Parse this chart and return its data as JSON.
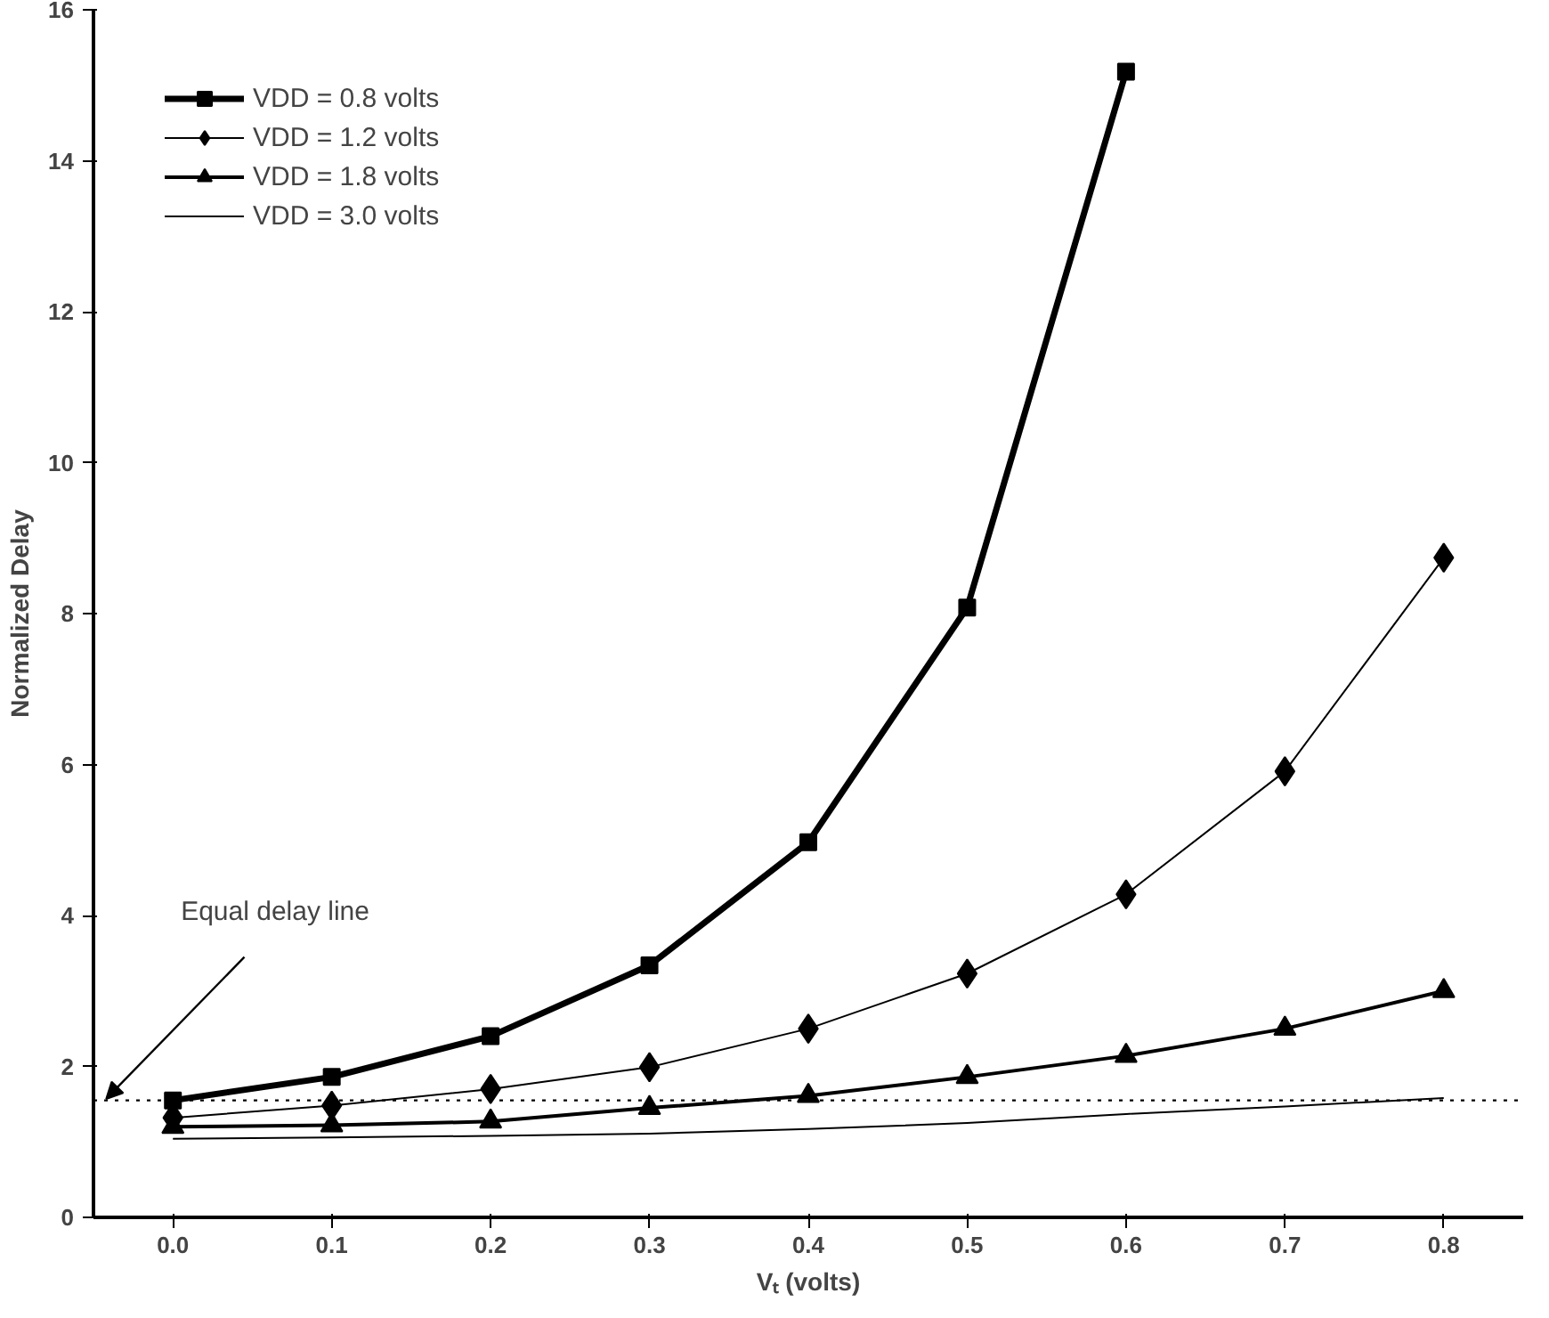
{
  "chart_data": {
    "type": "line",
    "xlabel": "Vₜ (volts)",
    "ylabel": "Normalized Delay",
    "categories": [
      "0.0",
      "0.1",
      "0.2",
      "0.3",
      "0.4",
      "0.5",
      "0.6",
      "0.7",
      "0.8"
    ],
    "series": [
      {
        "name": "VDD = 0.8 volts",
        "color": "#000000",
        "marker": "square",
        "values": [
          1.55,
          1.86,
          2.4,
          3.34,
          4.97,
          8.08,
          15.18,
          null,
          null
        ]
      },
      {
        "name": "VDD = 1.2 volts",
        "color": "#000000",
        "marker": "diamond",
        "values": [
          1.32,
          1.48,
          1.7,
          1.99,
          2.5,
          3.23,
          4.28,
          5.91,
          8.74
        ]
      },
      {
        "name": "VDD = 1.8 volts",
        "color": "#000000",
        "marker": "triangle",
        "values": [
          1.2,
          1.22,
          1.27,
          1.45,
          1.61,
          1.86,
          2.14,
          2.5,
          3.0
        ]
      },
      {
        "name": "VDD = 3.0 volts",
        "color": "#000000",
        "marker": "none",
        "values": [
          1.04,
          1.06,
          1.08,
          1.11,
          1.17,
          1.25,
          1.37,
          1.47,
          1.58
        ]
      }
    ],
    "ylim": [
      0,
      16
    ],
    "yticks": [
      0,
      2,
      4,
      6,
      8,
      10,
      12,
      14,
      16
    ],
    "grid": false,
    "legend": "top left",
    "line_style": "solid",
    "ref_lines": [
      {
        "axis": "y",
        "value": 1.55,
        "label": "Equal delay line",
        "line_style": "dotted",
        "color": "#000000"
      }
    ]
  }
}
